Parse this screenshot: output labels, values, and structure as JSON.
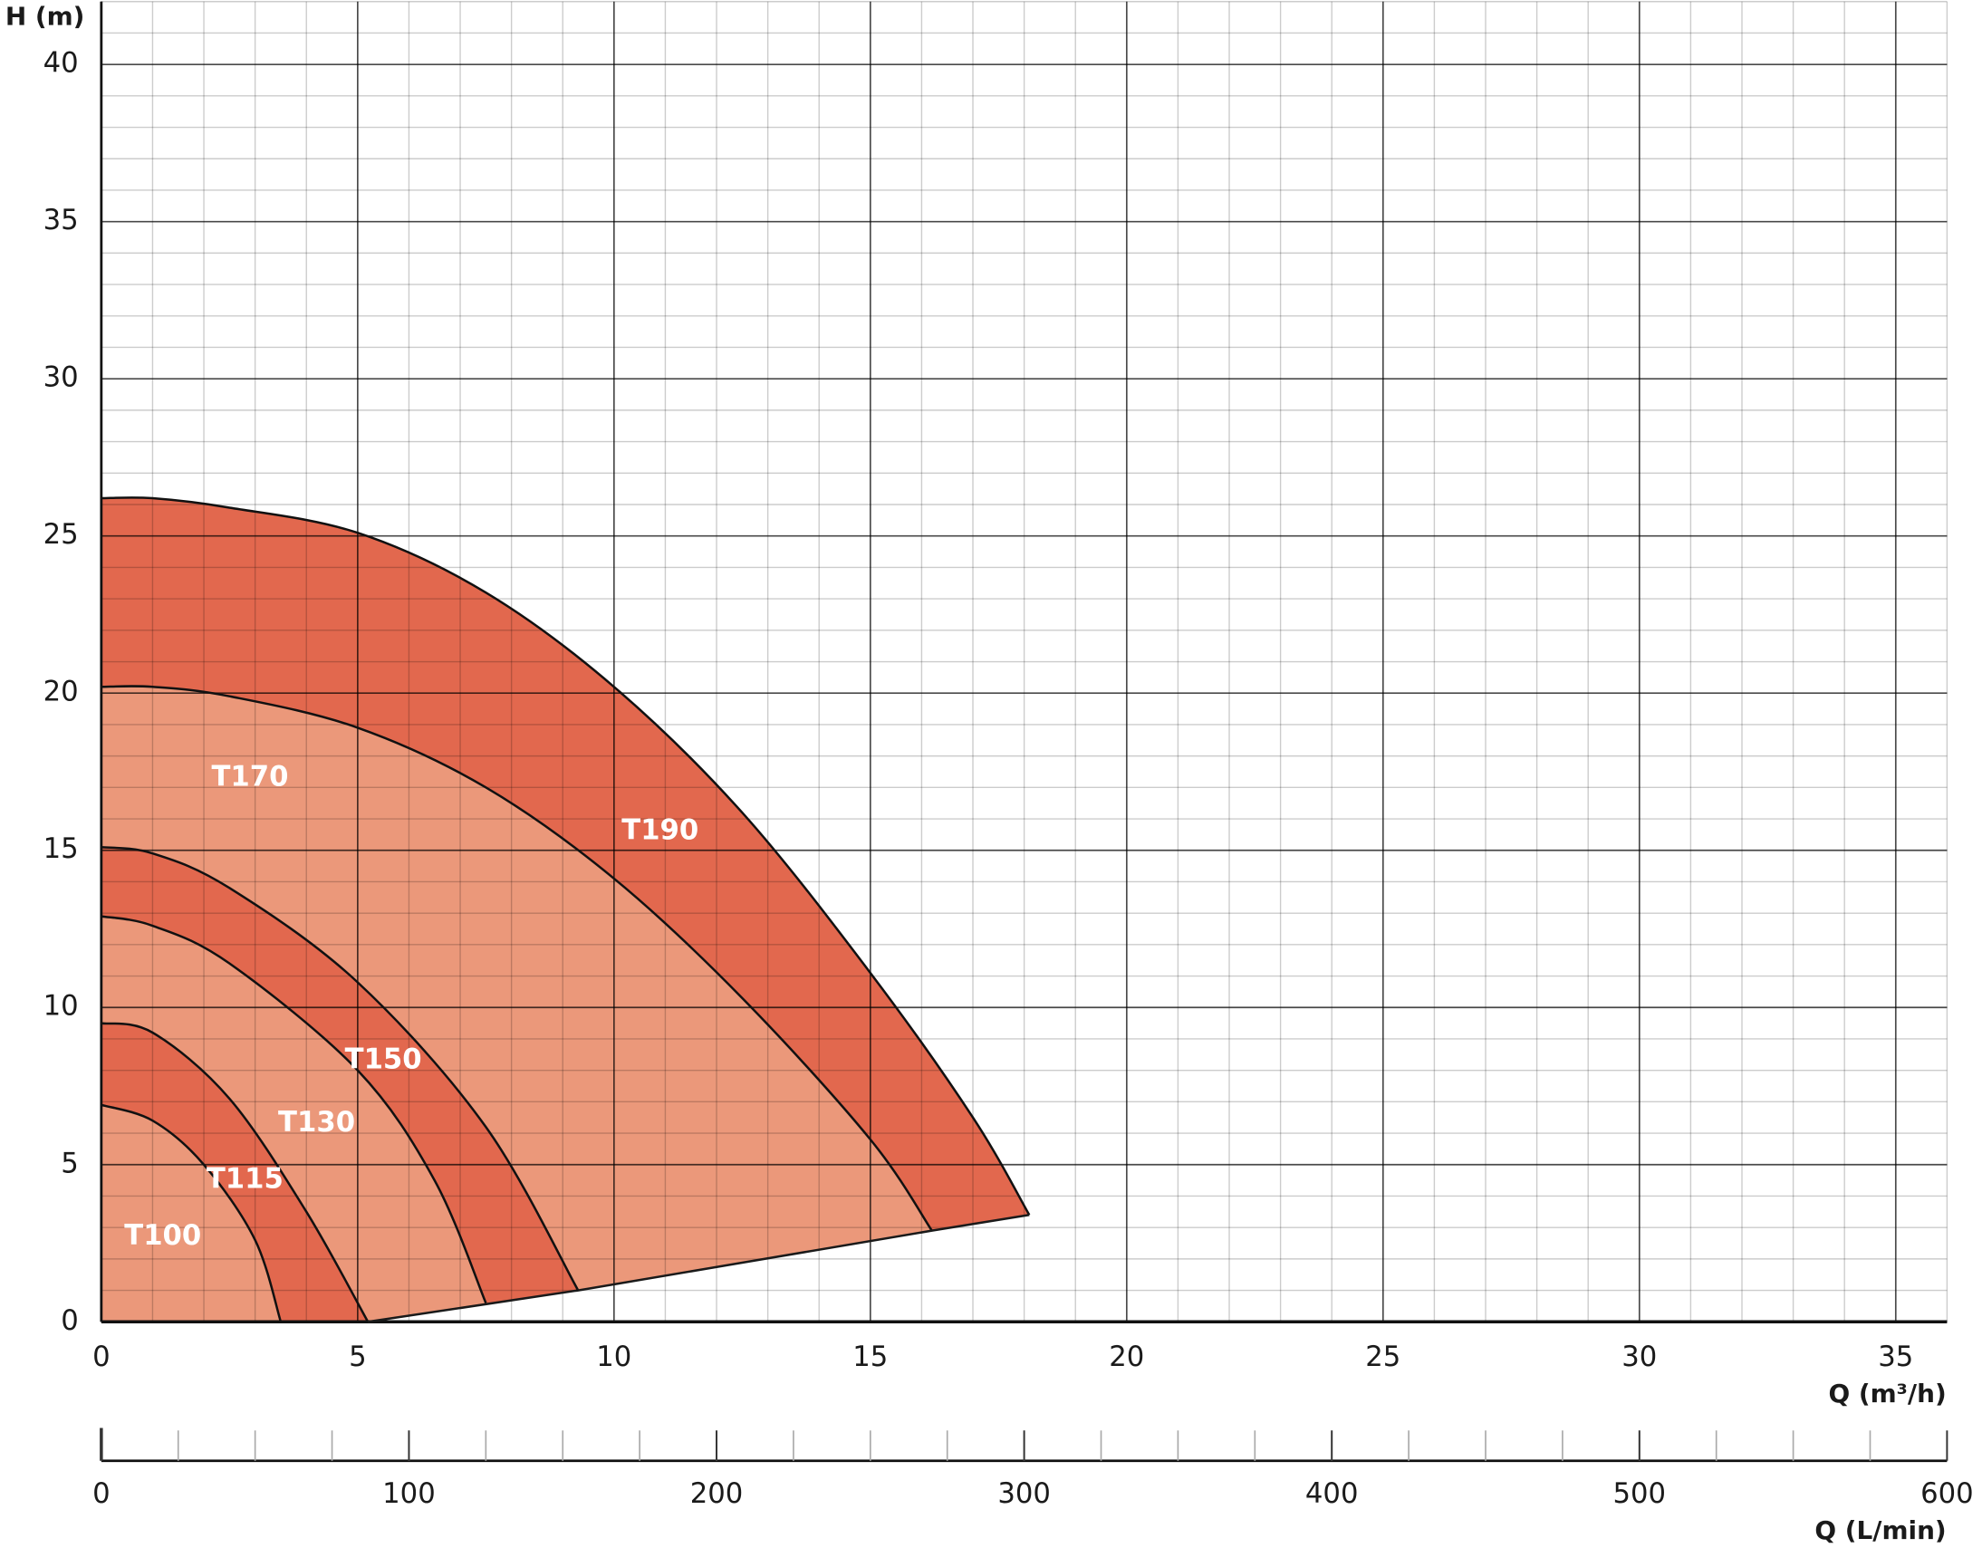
{
  "chart_data": {
    "type": "area",
    "x_label": "Q (m³/h)",
    "y_label": "H (m)",
    "x2_label": "Q (L/min)",
    "xlim": [
      0,
      36
    ],
    "xticks": [
      0,
      5,
      10,
      15,
      20,
      25,
      30,
      35
    ],
    "ylim": [
      0,
      42
    ],
    "yticks": [
      0,
      5,
      10,
      15,
      20,
      25,
      30,
      35,
      40
    ],
    "grid": true,
    "minor_grid_step": 1,
    "x2lim": [
      0,
      600
    ],
    "x2ticks": [
      0,
      100,
      200,
      300,
      400,
      500,
      600
    ],
    "x2_minor_step": 25,
    "boundary": {
      "x": [
        5.2,
        9.3,
        16.2,
        18.1
      ],
      "y": [
        0,
        1.0,
        2.9,
        3.4
      ],
      "color": "#1a1a1a"
    },
    "series": [
      {
        "name": "T100",
        "color": "#eb987a",
        "x": [
          0,
          1,
          2,
          3,
          3.5
        ],
        "values": [
          6.9,
          6.4,
          5.0,
          2.6,
          0
        ]
      },
      {
        "name": "T115",
        "color": "#e2684e",
        "x": [
          0,
          1,
          2.5,
          4,
          5.2
        ],
        "values": [
          9.5,
          9.2,
          7.1,
          3.5,
          0
        ]
      },
      {
        "name": "T130",
        "color": "#eb987a",
        "x": [
          0,
          1,
          2.5,
          5,
          6.5,
          7.5
        ],
        "values": [
          12.9,
          12.6,
          11.4,
          8.0,
          4.5,
          0.6
        ]
      },
      {
        "name": "T150",
        "color": "#e2684e",
        "x": [
          0,
          1,
          2.5,
          5,
          7.5,
          9.3
        ],
        "values": [
          15.1,
          14.9,
          13.8,
          10.8,
          6.2,
          1.0
        ]
      },
      {
        "name": "T170",
        "color": "#eb987a",
        "x": [
          0,
          1,
          2.5,
          5,
          7.5,
          10,
          12.5,
          15,
          16.2
        ],
        "values": [
          20.2,
          20.2,
          19.9,
          18.9,
          17.0,
          14.1,
          10.3,
          5.8,
          2.9
        ]
      },
      {
        "name": "T190",
        "color": "#e2684e",
        "x": [
          0,
          1,
          2.5,
          5,
          7.5,
          10,
          12.5,
          15,
          17,
          18.1
        ],
        "values": [
          26.2,
          26.2,
          25.9,
          25.1,
          23.2,
          20.2,
          16.2,
          11.1,
          6.5,
          3.4
        ]
      }
    ]
  }
}
